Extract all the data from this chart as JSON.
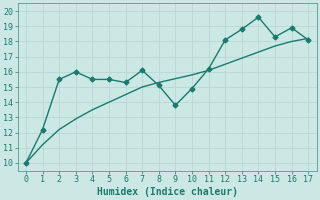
{
  "x": [
    0,
    1,
    2,
    3,
    4,
    5,
    6,
    7,
    8,
    9,
    10,
    11,
    12,
    13,
    14,
    15,
    16,
    17
  ],
  "y_jagged": [
    10.0,
    12.2,
    15.5,
    16.0,
    15.5,
    15.5,
    15.3,
    16.1,
    15.1,
    13.8,
    14.9,
    16.2,
    18.1,
    18.8,
    19.6,
    18.3,
    18.9,
    18.1
  ],
  "y_trend": [
    10.0,
    11.2,
    12.2,
    12.9,
    13.5,
    14.0,
    14.5,
    15.0,
    15.3,
    15.55,
    15.8,
    16.1,
    16.5,
    16.9,
    17.3,
    17.7,
    18.0,
    18.2
  ],
  "line_color": "#1a7a6e",
  "bg_color": "#cce8e5",
  "grid_color": "#b8d8d5",
  "xlabel": "Humidex (Indice chaleur)",
  "xlim": [
    -0.5,
    17.5
  ],
  "ylim": [
    9.5,
    20.5
  ],
  "xticks": [
    0,
    1,
    2,
    3,
    4,
    5,
    6,
    7,
    8,
    9,
    10,
    11,
    12,
    13,
    14,
    15,
    16,
    17
  ],
  "yticks": [
    10,
    11,
    12,
    13,
    14,
    15,
    16,
    17,
    18,
    19,
    20
  ],
  "marker": "D",
  "marker_size": 2.5,
  "linewidth": 1.0,
  "xlabel_fontsize": 7,
  "tick_fontsize": 6
}
